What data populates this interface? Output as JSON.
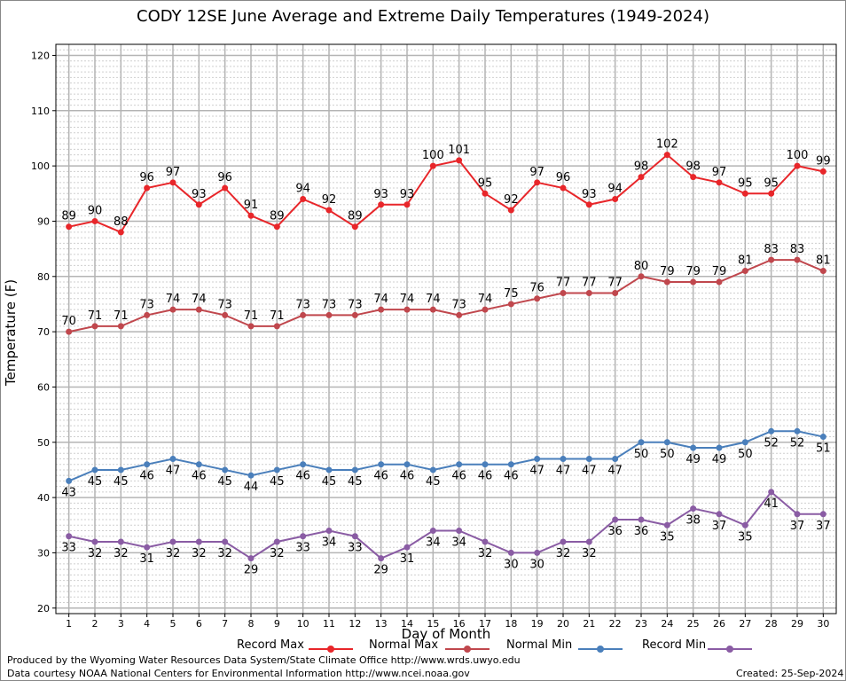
{
  "chart_data": {
    "type": "line",
    "title": "CODY 12SE June Average and Extreme Daily Temperatures (1949-2024)",
    "xlabel": "Day of Month",
    "ylabel": "Temperature (F)",
    "x": [
      1,
      2,
      3,
      4,
      5,
      6,
      7,
      8,
      9,
      10,
      11,
      12,
      13,
      14,
      15,
      16,
      17,
      18,
      19,
      20,
      21,
      22,
      23,
      24,
      25,
      26,
      27,
      28,
      29,
      30
    ],
    "xlim": [
      0.5,
      30.5
    ],
    "ylim": [
      19,
      122
    ],
    "yticks": [
      20,
      30,
      40,
      50,
      60,
      70,
      80,
      90,
      100,
      110,
      120
    ],
    "grid": true,
    "legend": "bottom",
    "series": [
      {
        "name": "Record Max",
        "color": "#e8262a",
        "label_position": "above",
        "values": [
          89,
          90,
          88,
          96,
          97,
          93,
          96,
          91,
          89,
          94,
          92,
          89,
          93,
          93,
          100,
          101,
          95,
          92,
          97,
          96,
          93,
          94,
          98,
          102,
          98,
          97,
          95,
          95,
          100,
          99
        ]
      },
      {
        "name": "Normal Max",
        "color": "#c0474d",
        "label_position": "above",
        "values": [
          70,
          71,
          71,
          73,
          74,
          74,
          73,
          71,
          71,
          73,
          73,
          73,
          74,
          74,
          74,
          73,
          74,
          75,
          76,
          77,
          77,
          77,
          80,
          79,
          79,
          79,
          81,
          83,
          83,
          81
        ]
      },
      {
        "name": "Normal Min",
        "color": "#4a7fbb",
        "label_position": "below",
        "values": [
          43,
          45,
          45,
          46,
          47,
          46,
          45,
          44,
          45,
          46,
          45,
          45,
          46,
          46,
          45,
          46,
          46,
          46,
          47,
          47,
          47,
          47,
          50,
          50,
          49,
          49,
          50,
          52,
          52,
          51
        ]
      },
      {
        "name": "Record Min",
        "color": "#8a5ca4",
        "label_position": "below",
        "values": [
          33,
          32,
          32,
          31,
          32,
          32,
          32,
          29,
          32,
          33,
          34,
          33,
          29,
          31,
          34,
          34,
          32,
          30,
          30,
          32,
          32,
          36,
          36,
          35,
          38,
          37,
          35,
          41,
          37,
          37
        ]
      }
    ]
  },
  "footer": {
    "line1": "Produced by the Wyoming Water Resources Data System/State Climate Office http://www.wrds.uwyo.edu",
    "line2": "Data courtesy NOAA National Centers for Environmental Information http://www.ncei.noaa.gov",
    "created": "Created:  25-Sep-2024"
  }
}
